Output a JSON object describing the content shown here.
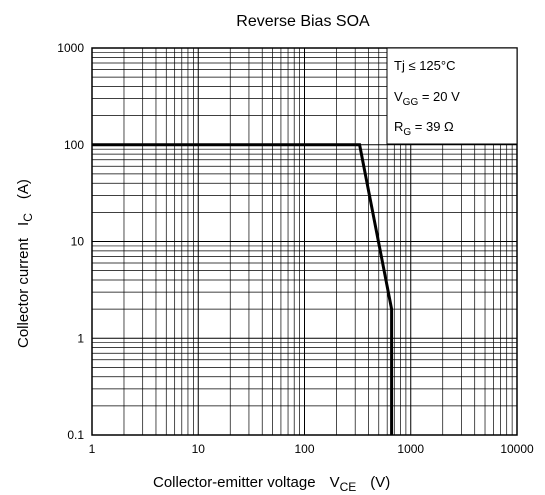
{
  "chart_data": {
    "type": "line",
    "title": "Reverse Bias SOA",
    "x_axis": {
      "label_main": "Collector-emitter voltage",
      "label_symbol": "V",
      "label_symbol_sub": "CE",
      "label_unit": "(V)",
      "scale": "log",
      "range": [
        1,
        10000
      ],
      "tick_values": [
        1,
        10,
        100,
        1000,
        10000
      ],
      "tick_labels": [
        "1",
        "10",
        "100",
        "1000",
        "10000"
      ]
    },
    "y_axis": {
      "label_main": "Collector current",
      "label_symbol": "I",
      "label_symbol_sub": "C",
      "label_unit": "(A)",
      "scale": "log",
      "range": [
        0.1,
        1000
      ],
      "tick_values": [
        0.1,
        1,
        10,
        100,
        1000
      ],
      "tick_labels": [
        "0.1",
        "1",
        "10",
        "100",
        "1000"
      ]
    },
    "grid": true,
    "series": [
      {
        "points": [
          [
            1,
            100
          ],
          [
            330,
            100
          ],
          [
            660,
            2
          ],
          [
            660,
            0.1
          ]
        ],
        "color": "#000000"
      }
    ],
    "legend": {
      "placement": "top-right",
      "lines": [
        {
          "main": "Tj ≤ 125°C",
          "sub": "",
          "rest": ""
        },
        {
          "main": "V",
          "sub": "GG",
          "rest": " = 20 V"
        },
        {
          "main": "R",
          "sub": "G",
          "rest": " = 39 Ω"
        }
      ]
    }
  }
}
